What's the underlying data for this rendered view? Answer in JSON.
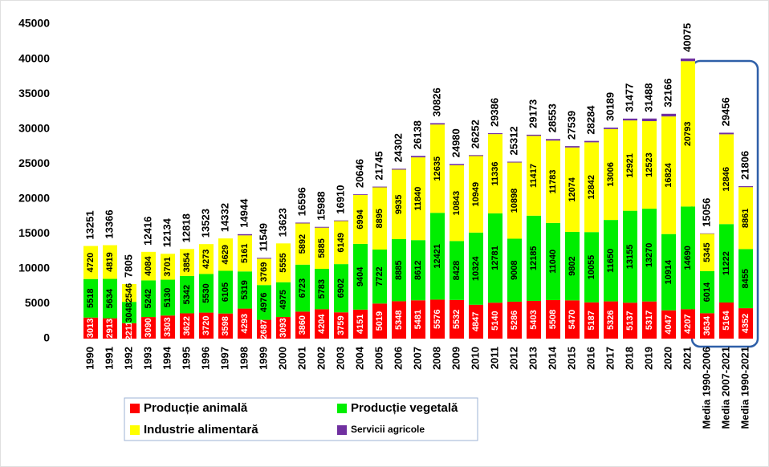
{
  "chart_data": {
    "type": "stacked-bar",
    "categories": [
      "1990",
      "1991",
      "1992",
      "1993",
      "1994",
      "1995",
      "1996",
      "1997",
      "1998",
      "1999",
      "2000",
      "2001",
      "2002",
      "2003",
      "2004",
      "2005",
      "2006",
      "2007",
      "2008",
      "2009",
      "2010",
      "2011",
      "2012",
      "2013",
      "2014",
      "2015",
      "2016",
      "2017",
      "2018",
      "2019",
      "2020",
      "2021",
      "Media 1990-2006",
      "Media 2007-2021",
      "Media 1990-2021"
    ],
    "series": [
      {
        "name": "Producție animală",
        "color": "#ff0000",
        "label_color": "#ffffff",
        "values": [
          3013,
          2913,
          2211,
          3090,
          3303,
          3622,
          3720,
          3598,
          4293,
          2687,
          3093,
          3860,
          4204,
          3759,
          4151,
          5019,
          5348,
          5481,
          5576,
          5532,
          4847,
          5140,
          5286,
          5403,
          5508,
          5470,
          5187,
          5326,
          5137,
          5317,
          4047,
          4207,
          3634,
          5164,
          4352
        ]
      },
      {
        "name": "Producție vegetală",
        "color": "#00ee00",
        "label_color": "#000000",
        "values": [
          5518,
          5634,
          3048,
          5242,
          5130,
          5342,
          5530,
          6105,
          5319,
          4976,
          4975,
          6723,
          5783,
          6902,
          9404,
          7722,
          8885,
          8612,
          12421,
          8428,
          10324,
          12781,
          9008,
          12185,
          11040,
          9802,
          10055,
          11650,
          13155,
          13270,
          10914,
          14690,
          6014,
          11222,
          8455
        ]
      },
      {
        "name": "Industrie alimentară",
        "color": "#ffff00",
        "label_color": "#000000",
        "values": [
          4720,
          4819,
          2546,
          4084,
          3701,
          3854,
          4273,
          4629,
          5161,
          3769,
          5555,
          5892,
          5885,
          6149,
          6994,
          8895,
          9935,
          11840,
          12635,
          10843,
          10949,
          11336,
          10898,
          11417,
          11783,
          12074,
          12842,
          13006,
          12921,
          12523,
          16824,
          20793,
          5345,
          12846,
          8861
        ]
      },
      {
        "name": "Servicii agricole",
        "color": "#7030a0",
        "values": [
          0,
          0,
          0,
          0,
          0,
          0,
          0,
          0,
          171,
          117,
          0,
          121,
          116,
          100,
          97,
          109,
          134,
          205,
          194,
          177,
          132,
          129,
          120,
          168,
          222,
          193,
          200,
          207,
          264,
          378,
          381,
          385,
          63,
          224,
          138
        ]
      }
    ],
    "totals": [
      13251,
      13366,
      7805,
      12416,
      12134,
      12818,
      13523,
      14332,
      14944,
      11549,
      13623,
      16596,
      15988,
      16910,
      20646,
      21745,
      24302,
      26138,
      30826,
      24980,
      26252,
      29386,
      25312,
      29173,
      28553,
      27539,
      28284,
      30189,
      31477,
      31488,
      32166,
      40075,
      15056,
      29456,
      21806
    ],
    "ylim": [
      0,
      45000
    ],
    "yticks": [
      0,
      5000,
      10000,
      15000,
      20000,
      25000,
      30000,
      35000,
      40000,
      45000
    ]
  }
}
